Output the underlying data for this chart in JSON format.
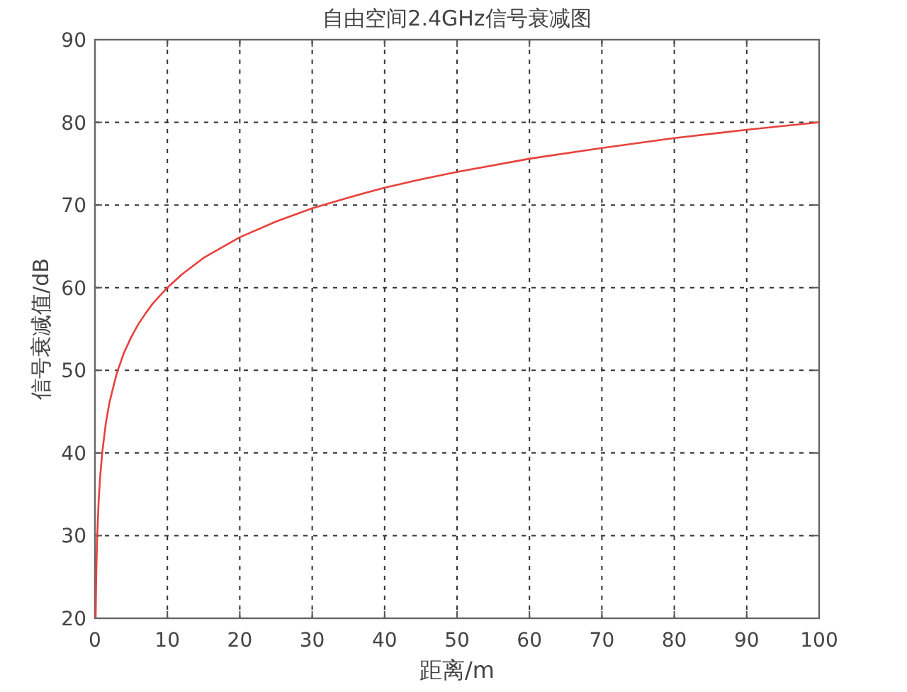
{
  "chart_data": {
    "type": "line",
    "title": "自由空间2.4GHz信号衰减图",
    "xlabel": "距离/m",
    "ylabel": "信号衰减值/dB",
    "series": [
      {
        "color": "#e8413c",
        "x": [
          0.1,
          0.15,
          0.2,
          0.3,
          0.5,
          0.7,
          1,
          1.5,
          2,
          3,
          4,
          5,
          6,
          7,
          8,
          10,
          12,
          15,
          20,
          25,
          30,
          35,
          40,
          45,
          50,
          60,
          70,
          80,
          90,
          100
        ],
        "values": [
          20.1,
          23.6,
          26.1,
          29.6,
          34.0,
          36.9,
          40.0,
          43.6,
          46.1,
          49.6,
          52.1,
          54.0,
          55.6,
          56.9,
          58.1,
          60.0,
          61.6,
          63.6,
          66.1,
          68.0,
          69.6,
          70.9,
          72.1,
          73.1,
          74.0,
          75.6,
          76.9,
          78.1,
          79.1,
          80.0
        ]
      }
    ],
    "xlim": [
      0,
      100
    ],
    "xticks": [
      0,
      10,
      20,
      30,
      40,
      50,
      60,
      70,
      80,
      90,
      100
    ],
    "ylim": [
      20,
      90
    ],
    "yticks": [
      20,
      30,
      40,
      50,
      60,
      70,
      80,
      90
    ],
    "grid": true,
    "line_style": "solid"
  }
}
